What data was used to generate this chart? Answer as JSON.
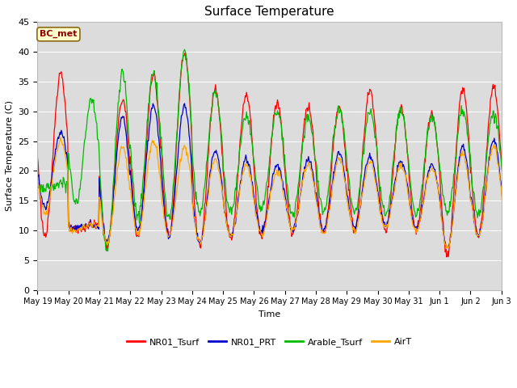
{
  "title": "Surface Temperature",
  "xlabel": "Time",
  "ylabel": "Surface Temperature (C)",
  "ylim": [
    0,
    45
  ],
  "yticks": [
    0,
    5,
    10,
    15,
    20,
    25,
    30,
    35,
    40,
    45
  ],
  "annotation_text": "BC_met",
  "annotation_color": "#8B0000",
  "annotation_bg": "#FFFFCC",
  "annotation_border": "#8B6914",
  "background_color": "#DCDCDC",
  "line_colors": {
    "NR01_Tsurf": "#FF0000",
    "NR01_PRT": "#0000CC",
    "Arable_Tsurf": "#00BB00",
    "AirT": "#FFA500"
  },
  "xtick_labels": [
    "May 19",
    "May 20",
    "May 21",
    "May 22",
    "May 23",
    "May 24",
    "May 25",
    "May 26",
    "May 27",
    "May 28",
    "May 29",
    "May 30",
    "May 31",
    "Jun 1",
    "Jun 2",
    "Jun 3"
  ],
  "num_days": 16,
  "points_per_day": 48,
  "nr01_mins": [
    9,
    10,
    7.5,
    9,
    9,
    7.5,
    8.5,
    9,
    9.5,
    9.5,
    10,
    10,
    10,
    6,
    9,
    8.5
  ],
  "nr01_maxs": [
    36.5,
    11,
    32,
    36,
    40,
    34,
    33,
    31.5,
    31,
    30.5,
    33.5,
    30.5,
    29.5,
    34,
    34,
    34
  ],
  "prt_mins": [
    14,
    10.5,
    8,
    10,
    9,
    8,
    9,
    10,
    10,
    10,
    10.5,
    11,
    10.5,
    7,
    9,
    9
  ],
  "prt_maxs": [
    26.5,
    11,
    29,
    31,
    31,
    23.5,
    22,
    21,
    22,
    23,
    22.5,
    21.5,
    21,
    24,
    25,
    25
  ],
  "arable_mins": [
    17,
    14.5,
    7,
    12.5,
    12,
    13,
    13,
    13.5,
    12.5,
    13,
    13,
    12.5,
    12.5,
    13,
    13,
    12
  ],
  "arable_maxs": [
    18,
    32,
    36.5,
    36.5,
    40,
    33,
    29.5,
    30,
    29,
    30.5,
    30,
    30,
    29,
    30,
    29.5,
    29
  ],
  "air_mins": [
    13,
    10,
    8,
    9.5,
    9,
    8,
    9,
    9.5,
    10,
    9.5,
    10,
    10.5,
    10,
    7,
    9,
    8.5
  ],
  "air_maxs": [
    25,
    11,
    24,
    25,
    24,
    22,
    21,
    20,
    21,
    22,
    21.5,
    21,
    20.5,
    23,
    24,
    24
  ],
  "figsize": [
    6.4,
    4.8
  ],
  "dpi": 100
}
